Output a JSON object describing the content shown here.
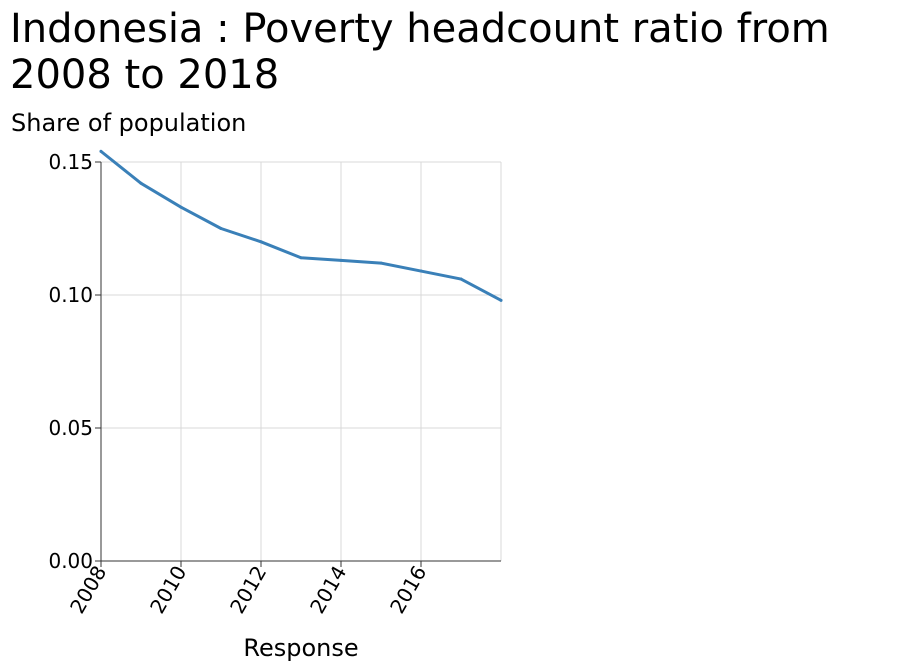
{
  "chart_data": {
    "type": "line",
    "title": "Indonesia : Poverty headcount ratio from 2008 to 2018",
    "subtitle": "Share of population",
    "xlabel": "Response",
    "ylabel": "",
    "xlim": [
      2008,
      2018
    ],
    "ylim": [
      0,
      0.15
    ],
    "x_ticks": [
      2008,
      2010,
      2012,
      2014,
      2016
    ],
    "y_ticks": [
      0.0,
      0.05,
      0.1,
      0.15
    ],
    "x_tick_labels": [
      "2008",
      "2010",
      "2012",
      "2014",
      "2016"
    ],
    "y_tick_labels": [
      "0.00",
      "0.05",
      "0.10",
      "0.15"
    ],
    "grid": true,
    "line_color": "#3a80b8",
    "grid_color": "#d9d9d9",
    "x": [
      2008,
      2009,
      2010,
      2011,
      2012,
      2013,
      2014,
      2015,
      2016,
      2017,
      2018
    ],
    "series": [
      {
        "values": [
          0.154,
          0.142,
          0.133,
          0.125,
          0.12,
          0.114,
          0.113,
          0.112,
          0.109,
          0.106,
          0.098
        ]
      }
    ]
  }
}
